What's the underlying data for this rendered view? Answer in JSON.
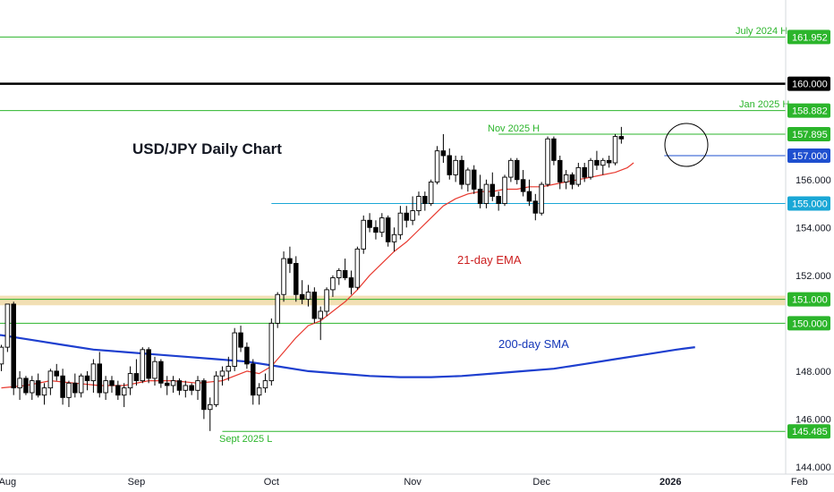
{
  "chart_data": {
    "type": "candlestick",
    "title": "USD/JPY Daily Chart",
    "ylim": [
      143.7,
      163.5
    ],
    "price_ticks": [
      144,
      146,
      148,
      152,
      154,
      156
    ],
    "date_ticks": [
      {
        "label": "Aug",
        "bold": false,
        "index": 1
      },
      {
        "label": "Sep",
        "bold": false,
        "index": 22
      },
      {
        "label": "Oct",
        "bold": false,
        "index": 44
      },
      {
        "label": "Nov",
        "bold": false,
        "index": 67
      },
      {
        "label": "Dec",
        "bold": false,
        "index": 88
      },
      {
        "label": "2026",
        "bold": true,
        "index": 109
      },
      {
        "label": "Feb",
        "bold": false,
        "index": 130
      }
    ],
    "levels": [
      {
        "value": 161.952,
        "label": "161.952",
        "color": "#2bb52b",
        "line_from_index": -5,
        "annotation": "July 2024 H"
      },
      {
        "value": 160.0,
        "label": "160.000",
        "color": "#000000",
        "line_from_index": -5,
        "annotation": ""
      },
      {
        "value": 158.882,
        "label": "158.882",
        "color": "#2bb52b",
        "line_from_index": -5,
        "annotation": "Jan 2025 H"
      },
      {
        "value": 157.895,
        "label": "157.895",
        "color": "#2bb52b",
        "line_from_index": 81,
        "annotation": "Nov 2025 H"
      },
      {
        "value": 157.0,
        "label": "157.000",
        "color": "#1e4fcf",
        "line_from_index": 108,
        "annotation": ""
      },
      {
        "value": 155.0,
        "label": "155.000",
        "color": "#1aa7d6",
        "line_from_index": 44,
        "annotation": ""
      },
      {
        "value": 151.0,
        "label": "151.000",
        "color": "#2bb52b",
        "line_from_index": -5,
        "annotation": ""
      },
      {
        "value": 150.0,
        "label": "150.000",
        "color": "#2bb52b",
        "line_from_index": -5,
        "annotation": ""
      },
      {
        "value": 145.485,
        "label": "145.485",
        "color": "#2bb52b",
        "line_from_index": 36,
        "annotation": "Sept 2025 L"
      }
    ],
    "zone": {
      "from": 150.75,
      "to": 151.15,
      "color": "#f2dfb4"
    },
    "candles": [
      [
        148.3,
        149.1,
        148.0,
        149.0
      ],
      [
        149.0,
        150.8,
        148.8,
        150.8
      ],
      [
        150.8,
        150.9,
        147.0,
        147.3
      ],
      [
        147.3,
        148.0,
        146.8,
        147.7
      ],
      [
        147.7,
        147.8,
        147.0,
        147.1
      ],
      [
        147.1,
        147.8,
        146.8,
        147.6
      ],
      [
        147.6,
        147.9,
        146.9,
        147.0
      ],
      [
        147.0,
        147.5,
        146.6,
        147.3
      ],
      [
        147.3,
        148.1,
        147.0,
        148.0
      ],
      [
        148.0,
        148.3,
        147.6,
        147.8
      ],
      [
        147.8,
        148.1,
        146.6,
        146.9
      ],
      [
        146.9,
        147.6,
        146.5,
        147.5
      ],
      [
        147.5,
        147.9,
        146.9,
        147.1
      ],
      [
        147.1,
        147.9,
        146.9,
        147.8
      ],
      [
        147.8,
        148.0,
        147.2,
        147.6
      ],
      [
        147.6,
        148.5,
        147.1,
        148.3
      ],
      [
        148.3,
        148.8,
        146.9,
        147.1
      ],
      [
        147.1,
        147.8,
        146.8,
        147.6
      ],
      [
        147.6,
        147.8,
        147.1,
        147.4
      ],
      [
        147.4,
        147.6,
        146.8,
        147.0
      ],
      [
        147.0,
        147.5,
        146.5,
        147.3
      ],
      [
        147.3,
        148.2,
        147.0,
        147.9
      ],
      [
        147.9,
        148.5,
        147.4,
        147.6
      ],
      [
        147.6,
        149.0,
        147.5,
        148.9
      ],
      [
        148.9,
        149.0,
        147.5,
        147.7
      ],
      [
        147.7,
        148.6,
        147.4,
        148.4
      ],
      [
        148.4,
        148.5,
        147.3,
        147.5
      ],
      [
        147.5,
        147.8,
        147.0,
        147.4
      ],
      [
        147.4,
        147.8,
        147.1,
        147.6
      ],
      [
        147.6,
        147.7,
        147.0,
        147.2
      ],
      [
        147.2,
        147.6,
        146.9,
        147.4
      ],
      [
        147.4,
        147.5,
        147.0,
        147.2
      ],
      [
        147.2,
        147.8,
        146.8,
        147.6
      ],
      [
        147.6,
        147.7,
        146.0,
        146.4
      ],
      [
        146.4,
        146.9,
        145.5,
        146.6
      ],
      [
        146.6,
        148.0,
        146.5,
        147.8
      ],
      [
        147.8,
        148.2,
        147.4,
        148.0
      ],
      [
        148.0,
        148.6,
        147.6,
        148.2
      ],
      [
        148.2,
        149.8,
        148.0,
        149.6
      ],
      [
        149.6,
        149.9,
        148.8,
        149.0
      ],
      [
        149.0,
        149.2,
        148.1,
        148.3
      ],
      [
        148.3,
        148.5,
        146.6,
        147.0
      ],
      [
        147.0,
        147.5,
        146.6,
        147.3
      ],
      [
        147.3,
        147.9,
        147.1,
        147.6
      ],
      [
        147.6,
        150.2,
        147.4,
        150.0
      ],
      [
        150.0,
        151.3,
        149.8,
        151.2
      ],
      [
        151.2,
        153.0,
        150.9,
        152.7
      ],
      [
        152.7,
        153.2,
        152.1,
        152.5
      ],
      [
        152.5,
        152.8,
        150.9,
        151.2
      ],
      [
        151.2,
        151.8,
        150.8,
        151.0
      ],
      [
        151.0,
        151.6,
        150.7,
        151.3
      ],
      [
        151.3,
        151.5,
        150.0,
        150.2
      ],
      [
        150.2,
        150.7,
        149.3,
        150.5
      ],
      [
        150.5,
        151.5,
        150.3,
        151.4
      ],
      [
        151.4,
        152.0,
        151.1,
        151.9
      ],
      [
        151.9,
        152.3,
        151.6,
        152.2
      ],
      [
        152.2,
        152.7,
        151.8,
        151.9
      ],
      [
        151.9,
        152.2,
        151.2,
        151.5
      ],
      [
        151.5,
        153.2,
        151.4,
        153.1
      ],
      [
        153.1,
        154.5,
        152.9,
        154.3
      ],
      [
        154.3,
        154.6,
        153.8,
        154.0
      ],
      [
        154.0,
        154.3,
        153.5,
        153.8
      ],
      [
        153.8,
        154.6,
        153.6,
        154.4
      ],
      [
        154.4,
        154.5,
        153.2,
        153.4
      ],
      [
        153.4,
        154.0,
        153.0,
        153.7
      ],
      [
        153.7,
        154.9,
        153.5,
        154.6
      ],
      [
        154.6,
        154.9,
        154.0,
        154.3
      ],
      [
        154.3,
        155.3,
        154.1,
        154.7
      ],
      [
        154.7,
        155.5,
        154.5,
        155.3
      ],
      [
        155.3,
        155.5,
        154.7,
        155.0
      ],
      [
        155.0,
        156.0,
        154.9,
        155.9
      ],
      [
        155.9,
        157.4,
        155.8,
        157.2
      ],
      [
        157.2,
        157.9,
        156.7,
        157.0
      ],
      [
        157.0,
        157.3,
        156.0,
        156.2
      ],
      [
        156.2,
        157.0,
        155.9,
        156.8
      ],
      [
        156.8,
        157.0,
        155.6,
        155.8
      ],
      [
        155.8,
        156.5,
        155.5,
        156.4
      ],
      [
        156.4,
        156.6,
        155.4,
        155.6
      ],
      [
        155.6,
        156.2,
        154.8,
        155.0
      ],
      [
        155.0,
        156.0,
        154.8,
        155.8
      ],
      [
        155.8,
        156.3,
        155.1,
        155.3
      ],
      [
        155.3,
        155.5,
        154.7,
        155.0
      ],
      [
        155.0,
        156.2,
        154.9,
        156.1
      ],
      [
        156.1,
        156.9,
        155.9,
        156.8
      ],
      [
        156.8,
        156.9,
        155.8,
        156.0
      ],
      [
        156.0,
        156.4,
        155.3,
        155.5
      ],
      [
        155.5,
        156.0,
        154.9,
        155.1
      ],
      [
        155.1,
        155.4,
        154.3,
        154.6
      ],
      [
        154.6,
        155.9,
        154.5,
        155.8
      ],
      [
        155.8,
        157.8,
        155.7,
        157.7
      ],
      [
        157.7,
        157.8,
        156.6,
        156.8
      ],
      [
        156.8,
        157.0,
        155.6,
        155.9
      ],
      [
        155.9,
        156.4,
        155.6,
        156.2
      ],
      [
        156.2,
        156.3,
        155.6,
        155.8
      ],
      [
        155.8,
        156.7,
        155.7,
        156.5
      ],
      [
        156.5,
        156.7,
        155.9,
        156.1
      ],
      [
        156.1,
        156.9,
        156.0,
        156.8
      ],
      [
        156.8,
        157.2,
        156.4,
        156.6
      ],
      [
        156.6,
        156.9,
        156.2,
        156.8
      ],
      [
        156.8,
        157.0,
        156.5,
        156.7
      ],
      [
        156.7,
        157.9,
        156.6,
        157.8
      ],
      [
        157.8,
        158.2,
        157.5,
        157.7
      ]
    ],
    "ema21": [
      [
        0,
        147.3
      ],
      [
        4,
        147.4
      ],
      [
        8,
        147.6
      ],
      [
        12,
        147.5
      ],
      [
        16,
        147.4
      ],
      [
        20,
        147.4
      ],
      [
        24,
        147.6
      ],
      [
        28,
        147.6
      ],
      [
        32,
        147.5
      ],
      [
        36,
        147.6
      ],
      [
        40,
        148.0
      ],
      [
        42,
        147.9
      ],
      [
        44,
        148.2
      ],
      [
        46,
        148.8
      ],
      [
        48,
        149.4
      ],
      [
        50,
        149.9
      ],
      [
        52,
        150.1
      ],
      [
        54,
        150.5
      ],
      [
        56,
        150.9
      ],
      [
        58,
        151.4
      ],
      [
        60,
        152.0
      ],
      [
        62,
        152.5
      ],
      [
        64,
        153.0
      ],
      [
        66,
        153.4
      ],
      [
        68,
        153.9
      ],
      [
        70,
        154.4
      ],
      [
        72,
        154.9
      ],
      [
        74,
        155.2
      ],
      [
        76,
        155.4
      ],
      [
        78,
        155.5
      ],
      [
        80,
        155.5
      ],
      [
        82,
        155.6
      ],
      [
        84,
        155.6
      ],
      [
        86,
        155.7
      ],
      [
        88,
        155.7
      ],
      [
        90,
        155.8
      ],
      [
        92,
        155.9
      ],
      [
        94,
        156.0
      ],
      [
        96,
        156.1
      ],
      [
        98,
        156.2
      ],
      [
        100,
        156.3
      ],
      [
        102,
        156.5
      ],
      [
        103,
        156.7
      ]
    ],
    "sma200": [
      [
        -5,
        149.6
      ],
      [
        0,
        149.5
      ],
      [
        5,
        149.3
      ],
      [
        10,
        149.1
      ],
      [
        15,
        148.9
      ],
      [
        20,
        148.8
      ],
      [
        25,
        148.7
      ],
      [
        30,
        148.6
      ],
      [
        35,
        148.5
      ],
      [
        40,
        148.4
      ],
      [
        45,
        148.2
      ],
      [
        50,
        148.0
      ],
      [
        55,
        147.9
      ],
      [
        60,
        147.8
      ],
      [
        65,
        147.75
      ],
      [
        70,
        147.75
      ],
      [
        75,
        147.8
      ],
      [
        80,
        147.9
      ],
      [
        85,
        148.0
      ],
      [
        90,
        148.1
      ],
      [
        95,
        148.3
      ],
      [
        100,
        148.5
      ],
      [
        105,
        148.7
      ],
      [
        110,
        148.9
      ],
      [
        113,
        149.0
      ]
    ],
    "annotations": [
      {
        "text": "July 2024 H",
        "color": "#2bb52b"
      },
      {
        "text": "Jan 2025 H",
        "color": "#2bb52b"
      },
      {
        "text": "Nov 2025 H",
        "color": "#2bb52b"
      },
      {
        "text": "Sept 2025 L",
        "color": "#2bb52b"
      },
      {
        "text": "21-day EMA",
        "color": "#cc1f1f"
      },
      {
        "text": "200-day SMA",
        "color": "#1336b8"
      }
    ],
    "colors": {
      "up": "#ffffff",
      "down": "#000000",
      "wick": "#000000",
      "ema": "#e8392f",
      "sma": "#1e3fcf"
    }
  }
}
